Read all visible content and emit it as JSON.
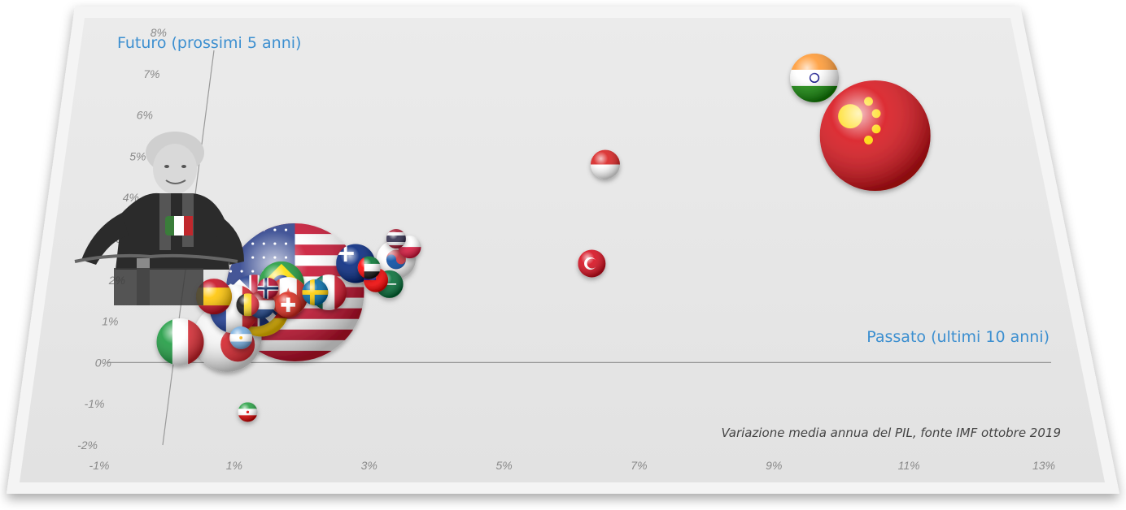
{
  "chart_data": {
    "type": "scatter",
    "y_axis_title": "Futuro (prossimi 5 anni)",
    "x_axis_title": "Passato (ultimi 10 anni)",
    "source_note": "Variazione media annua del PIL, fonte IMF ottobre 2019",
    "x_ticks": [
      "-1%",
      "1%",
      "3%",
      "5%",
      "7%",
      "9%",
      "11%",
      "13%"
    ],
    "y_ticks": [
      "-2%",
      "-1%",
      "0%",
      "1%",
      "2%",
      "3%",
      "4%",
      "5%",
      "6%",
      "7%",
      "8%"
    ],
    "xlim": [
      -1,
      13
    ],
    "ylim": [
      -2,
      8
    ],
    "points": [
      {
        "country": "China",
        "x": 10.5,
        "y": 5.5,
        "size": 68,
        "flag": "china"
      },
      {
        "country": "India",
        "x": 9.6,
        "y": 6.9,
        "size": 30,
        "flag": "india"
      },
      {
        "country": "Indonesia",
        "x": 6.5,
        "y": 4.8,
        "size": 18,
        "flag": "indonesia"
      },
      {
        "country": "Turkey",
        "x": 6.3,
        "y": 2.4,
        "size": 17,
        "flag": "turkey"
      },
      {
        "country": "United States",
        "x": 1.9,
        "y": 1.7,
        "size": 85,
        "flag": "usa"
      },
      {
        "country": "Japan",
        "x": 0.9,
        "y": 0.6,
        "size": 42,
        "flag": "japan"
      },
      {
        "country": "Italy",
        "x": 0.2,
        "y": 0.5,
        "size": 29,
        "flag": "italy"
      },
      {
        "country": "Argentina",
        "x": 1.1,
        "y": 0.6,
        "size": 14,
        "flag": "argentina"
      },
      {
        "country": "Spain",
        "x": 0.7,
        "y": 1.6,
        "size": 22,
        "flag": "spain"
      },
      {
        "country": "Brazil",
        "x": 1.7,
        "y": 1.9,
        "size": 28,
        "flag": "brazil"
      },
      {
        "country": "United Kingdom",
        "x": 1.3,
        "y": 1.5,
        "size": 32,
        "flag": "uk"
      },
      {
        "country": "France",
        "x": 1.0,
        "y": 1.3,
        "size": 30,
        "flag": "france"
      },
      {
        "country": "Germany",
        "x": 1.4,
        "y": 1.3,
        "size": 34,
        "flag": "germany"
      },
      {
        "country": "Norway",
        "x": 1.5,
        "y": 1.8,
        "size": 13,
        "flag": "norway"
      },
      {
        "country": "Belgium",
        "x": 1.2,
        "y": 1.4,
        "size": 14,
        "flag": "belgium"
      },
      {
        "country": "Netherlands",
        "x": 1.4,
        "y": 1.4,
        "size": 17,
        "flag": "netherlands"
      },
      {
        "country": "Canada",
        "x": 1.8,
        "y": 1.6,
        "size": 24,
        "flag": "canada"
      },
      {
        "country": "Switzerland",
        "x": 1.8,
        "y": 1.4,
        "size": 16,
        "flag": "switzerland"
      },
      {
        "country": "Sweden",
        "x": 2.2,
        "y": 1.7,
        "size": 16,
        "flag": "sweden"
      },
      {
        "country": "Mexico",
        "x": 2.4,
        "y": 1.7,
        "size": 22,
        "flag": "mexico"
      },
      {
        "country": "Australia",
        "x": 2.8,
        "y": 2.4,
        "size": 24,
        "flag": "australia"
      },
      {
        "country": "UAE",
        "x": 3.0,
        "y": 2.3,
        "size": 14,
        "flag": "uae"
      },
      {
        "country": "Taiwan",
        "x": 3.1,
        "y": 2.0,
        "size": 15,
        "flag": "taiwan"
      },
      {
        "country": "South Korea",
        "x": 3.4,
        "y": 2.5,
        "size": 24,
        "flag": "korea"
      },
      {
        "country": "Saudi Arabia",
        "x": 3.3,
        "y": 1.9,
        "size": 17,
        "flag": "saudi"
      },
      {
        "country": "Thailand",
        "x": 3.4,
        "y": 3.0,
        "size": 12,
        "flag": "thailand"
      },
      {
        "country": "Poland",
        "x": 3.6,
        "y": 2.8,
        "size": 14,
        "flag": "poland"
      },
      {
        "country": "Iran",
        "x": 1.2,
        "y": -1.2,
        "size": 12,
        "flag": "iran"
      }
    ]
  }
}
